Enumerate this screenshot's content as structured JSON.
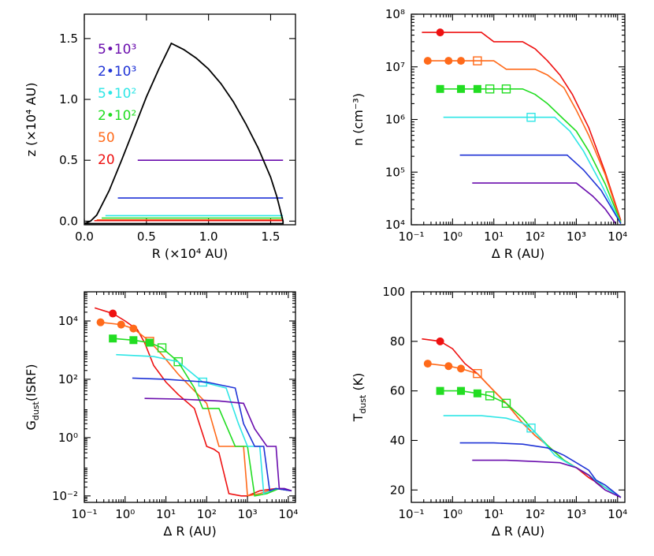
{
  "colors": {
    "5e3": "#6a0dad",
    "2e3": "#1f33d6",
    "5e2": "#2fe6e6",
    "2e2": "#22dd22",
    "50": "#ff6a1a",
    "20": "#ee1111",
    "outline": "#000000"
  },
  "chart_data": [
    {
      "id": "geometry",
      "type": "line",
      "xlabel": "R (×10⁴ AU)",
      "ylabel": "z (×10⁴ AU)",
      "xlim": [
        0,
        1.7
      ],
      "ylim": [
        -0.03,
        1.7
      ],
      "xticks": [
        "0.0",
        "0.5",
        "1.0",
        "1.5"
      ],
      "yticks": [
        "0.0",
        "0.5",
        "1.0",
        "1.5"
      ],
      "legend": [
        "5•10³",
        "2•10³",
        "5•10²",
        "2•10²",
        "50",
        "20"
      ],
      "outline": {
        "x": [
          0,
          0.05,
          0.1,
          0.2,
          0.3,
          0.4,
          0.5,
          0.6,
          0.7,
          0.8,
          0.9,
          1.0,
          1.1,
          1.2,
          1.3,
          1.4,
          1.5,
          1.55,
          1.6,
          1.6,
          0
        ],
        "y": [
          -0.02,
          0.0,
          0.05,
          0.25,
          0.5,
          0.76,
          1.02,
          1.25,
          1.46,
          1.41,
          1.34,
          1.25,
          1.13,
          0.98,
          0.8,
          0.6,
          0.36,
          0.2,
          0.0,
          -0.02,
          -0.02
        ]
      },
      "series": [
        {
          "name": "5•10³",
          "key": "5e3",
          "x": [
            0.43,
            1.6
          ],
          "y": [
            0.5,
            0.5
          ]
        },
        {
          "name": "2•10³",
          "key": "2e3",
          "x": [
            0.27,
            1.6
          ],
          "y": [
            0.19,
            0.19
          ]
        },
        {
          "name": "5•10²",
          "key": "5e2",
          "x": [
            0.17,
            1.6
          ],
          "y": [
            0.045,
            0.045
          ]
        },
        {
          "name": "2•10²",
          "key": "2e2",
          "x": [
            0.14,
            1.6
          ],
          "y": [
            0.025,
            0.025
          ]
        },
        {
          "name": "50",
          "key": "50",
          "x": [
            0.1,
            1.6
          ],
          "y": [
            0.01,
            0.01
          ]
        },
        {
          "name": "20",
          "key": "20",
          "x": [
            0.08,
            1.6
          ],
          "y": [
            0.004,
            0.004
          ]
        }
      ]
    },
    {
      "id": "density",
      "type": "line",
      "xlabel": "Δ R (AU)",
      "ylabel": "n (cm⁻³)",
      "xscale": "log",
      "yscale": "log",
      "xlim": [
        0.1,
        15000
      ],
      "ylim": [
        10000,
        100000000
      ],
      "xticks": [
        0.1,
        1,
        10,
        100,
        1000,
        10000
      ],
      "xticklabels": [
        "10⁻¹",
        "10⁰",
        "10¹",
        "10²",
        "10³",
        "10⁴"
      ],
      "yticks": [
        10000,
        100000,
        1000000,
        10000000,
        100000000
      ],
      "yticklabels": [
        "10⁴",
        "10⁵",
        "10⁶",
        "10⁷",
        "10⁸"
      ],
      "series": [
        {
          "name": "20",
          "key": "20",
          "x": [
            0.18,
            0.5,
            1,
            2,
            5,
            10,
            20,
            50,
            100,
            200,
            400,
            800,
            2000,
            5000,
            12000
          ],
          "y": [
            45000000,
            45000000,
            45000000,
            45000000,
            45000000,
            30000000,
            30000000,
            30000000,
            22000000,
            13000000,
            7000000,
            3000000,
            700000,
            100000,
            12000
          ],
          "markers_filled": [
            [
              0.5,
              45000000
            ]
          ],
          "markers_open": []
        },
        {
          "name": "50",
          "key": "50",
          "x": [
            0.25,
            0.8,
            1.6,
            4,
            10,
            20,
            50,
            100,
            200,
            500,
            1000,
            2000,
            5000,
            12000
          ],
          "y": [
            13000000,
            13000000,
            13000000,
            13000000,
            13000000,
            9000000,
            9000000,
            9000000,
            7000000,
            4000000,
            1500000,
            500000,
            90000,
            11000
          ],
          "markers_filled": [
            [
              0.25,
              13000000
            ],
            [
              0.8,
              13000000
            ],
            [
              1.6,
              13000000
            ]
          ],
          "markers_open": [
            [
              4,
              13000000
            ]
          ]
        },
        {
          "name": "2•10²",
          "key": "2e2",
          "x": [
            0.5,
            1,
            2,
            4,
            8,
            20,
            50,
            100,
            200,
            500,
            1000,
            2000,
            5000,
            12000
          ],
          "y": [
            3800000,
            3800000,
            3800000,
            3800000,
            3800000,
            3800000,
            3800000,
            3000000,
            2000000,
            1000000,
            600000,
            250000,
            60000,
            11000
          ],
          "markers_filled": [
            [
              0.5,
              3800000
            ],
            [
              1.6,
              3800000
            ],
            [
              4,
              3800000
            ]
          ],
          "markers_open": [
            [
              8,
              3800000
            ],
            [
              20,
              3800000
            ]
          ]
        },
        {
          "name": "5•10²",
          "key": "5e2",
          "x": [
            0.6,
            5,
            20,
            80,
            300,
            700,
            1500,
            4000,
            12000
          ],
          "y": [
            1100000,
            1100000,
            1100000,
            1100000,
            1100000,
            600000,
            250000,
            60000,
            10500
          ],
          "markers_filled": [],
          "markers_open": [
            [
              80,
              1100000
            ]
          ]
        },
        {
          "name": "2•10³",
          "key": "2e3",
          "x": [
            1.5,
            10,
            100,
            600,
            1500,
            4000,
            12000
          ],
          "y": [
            210000,
            210000,
            210000,
            210000,
            110000,
            45000,
            10500
          ],
          "markers_filled": [],
          "markers_open": []
        },
        {
          "name": "5•10³",
          "key": "5e3",
          "x": [
            3,
            20,
            200,
            1000,
            2500,
            5000,
            9000
          ],
          "y": [
            62000,
            62000,
            62000,
            62000,
            35000,
            20000,
            10500
          ],
          "markers_filled": [],
          "markers_open": []
        }
      ]
    },
    {
      "id": "gdust",
      "type": "line",
      "xlabel": "Δ R (AU)",
      "ylabel": "G_dust(ISRF)",
      "ylabel_main": "G",
      "ylabel_sub": "dust",
      "ylabel_rest": "(ISRF)",
      "xscale": "log",
      "yscale": "log",
      "xlim": [
        0.1,
        15000
      ],
      "ylim": [
        0.006,
        100000
      ],
      "xticks": [
        0.1,
        1,
        10,
        100,
        1000,
        10000
      ],
      "xticklabels": [
        "10⁻¹",
        "10⁰",
        "10¹",
        "10²",
        "10³",
        "10⁴"
      ],
      "yticks": [
        0.01,
        1,
        100,
        10000
      ],
      "yticklabels": [
        "10⁻²",
        "10⁰",
        "10²",
        "10⁴"
      ],
      "series": [
        {
          "name": "20",
          "key": "20",
          "x": [
            0.18,
            0.5,
            1,
            2,
            3,
            5,
            10,
            20,
            50,
            100,
            150,
            200,
            350,
            700,
            1000,
            2000,
            5000,
            12000
          ],
          "y": [
            28000,
            18000,
            10000,
            5000,
            1800,
            300,
            80,
            30,
            10,
            0.5,
            0.4,
            0.3,
            0.012,
            0.01,
            0.01,
            0.015,
            0.018,
            0.015
          ],
          "markers_filled": [
            [
              0.5,
              18000
            ]
          ],
          "markers_open": []
        },
        {
          "name": "50",
          "key": "50",
          "x": [
            0.25,
            0.8,
            1.6,
            4,
            8,
            20,
            50,
            100,
            200,
            300,
            500,
            800,
            1000,
            2000,
            5000,
            12000
          ],
          "y": [
            9000,
            7500,
            5500,
            2000,
            700,
            150,
            40,
            15,
            0.5,
            0.5,
            0.5,
            0.5,
            0.01,
            0.012,
            0.018,
            0.015
          ],
          "markers_filled": [
            [
              0.25,
              9000
            ],
            [
              0.8,
              7500
            ],
            [
              1.6,
              5500
            ]
          ],
          "markers_open": [
            [
              4,
              2000
            ]
          ]
        },
        {
          "name": "2•10²",
          "key": "2e2",
          "x": [
            0.5,
            1.6,
            4,
            8,
            20,
            50,
            80,
            200,
            500,
            700,
            1000,
            1500,
            3000,
            6000,
            12000
          ],
          "y": [
            2500,
            2200,
            1800,
            1200,
            400,
            50,
            10,
            10,
            0.5,
            0.5,
            0.5,
            0.01,
            0.012,
            0.018,
            0.015
          ],
          "markers_filled": [
            [
              0.5,
              2500
            ],
            [
              1.6,
              2200
            ],
            [
              4,
              1800
            ]
          ],
          "markers_open": [
            [
              8,
              1200
            ],
            [
              20,
              400
            ]
          ]
        },
        {
          "name": "5•10²",
          "key": "5e2",
          "x": [
            0.6,
            5,
            20,
            80,
            300,
            600,
            1000,
            1500,
            2000,
            2500,
            5000,
            12000
          ],
          "y": [
            700,
            600,
            400,
            80,
            50,
            3,
            0.5,
            0.5,
            0.5,
            0.012,
            0.018,
            0.015
          ],
          "markers_filled": [],
          "markers_open": [
            [
              80,
              80
            ]
          ]
        },
        {
          "name": "2•10³",
          "key": "2e3",
          "x": [
            1.5,
            10,
            100,
            500,
            800,
            1500,
            2500,
            3500,
            5000,
            12000
          ],
          "y": [
            110,
            100,
            80,
            50,
            3,
            0.5,
            0.5,
            0.015,
            0.018,
            0.015
          ],
          "markers_filled": [],
          "markers_open": []
        },
        {
          "name": "5•10³",
          "key": "5e3",
          "x": [
            3,
            20,
            200,
            800,
            1500,
            3000,
            5000,
            6000,
            8000,
            12000
          ],
          "y": [
            22,
            21,
            18,
            15,
            2,
            0.5,
            0.5,
            0.018,
            0.018,
            0.015
          ],
          "markers_filled": [],
          "markers_open": []
        }
      ]
    },
    {
      "id": "tdust",
      "type": "line",
      "xlabel": "Δ R (AU)",
      "ylabel": "T_dust (K)",
      "ylabel_main": "T",
      "ylabel_sub": "dust",
      "ylabel_rest": " (K)",
      "xscale": "log",
      "yscale": "linear",
      "xlim": [
        0.1,
        15000
      ],
      "ylim": [
        15,
        100
      ],
      "xticks": [
        0.1,
        1,
        10,
        100,
        1000,
        10000
      ],
      "xticklabels": [
        "10⁻¹",
        "10⁰",
        "10¹",
        "10²",
        "10³",
        "10⁴"
      ],
      "yticks": [
        20,
        40,
        60,
        80,
        100
      ],
      "yticklabels": [
        "20",
        "40",
        "60",
        "80",
        "100"
      ],
      "series": [
        {
          "name": "20",
          "key": "20",
          "x": [
            0.18,
            0.5,
            1,
            2,
            4,
            10,
            20,
            50,
            100,
            200,
            500,
            1000,
            2000,
            5000,
            12000
          ],
          "y": [
            81,
            80,
            77,
            71,
            67,
            60,
            55,
            47,
            42,
            38,
            32,
            29,
            25,
            21,
            17
          ],
          "markers_filled": [
            [
              0.5,
              80
            ]
          ],
          "markers_open": []
        },
        {
          "name": "50",
          "key": "50",
          "x": [
            0.25,
            0.8,
            1.6,
            4,
            10,
            20,
            50,
            100,
            200,
            500,
            1000,
            2000,
            5000,
            12000
          ],
          "y": [
            71,
            70,
            69,
            67,
            60,
            55,
            47,
            42,
            38,
            32,
            29,
            26,
            21,
            17
          ],
          "markers_filled": [
            [
              0.25,
              71
            ],
            [
              0.8,
              70
            ],
            [
              1.6,
              69
            ]
          ],
          "markers_open": [
            [
              4,
              67
            ]
          ]
        },
        {
          "name": "2•10²",
          "key": "2e2",
          "x": [
            0.5,
            1.6,
            4,
            8,
            20,
            50,
            80,
            200,
            500,
            1000,
            2000,
            5000,
            12000
          ],
          "y": [
            60,
            60,
            59,
            58,
            55,
            49,
            45,
            38,
            32,
            29,
            26,
            21,
            17
          ],
          "markers_filled": [
            [
              0.5,
              60
            ],
            [
              1.6,
              60
            ],
            [
              4,
              59
            ]
          ],
          "markers_open": [
            [
              8,
              58
            ],
            [
              20,
              55
            ]
          ]
        },
        {
          "name": "5•10²",
          "key": "5e2",
          "x": [
            0.6,
            5,
            20,
            50,
            80,
            150,
            300,
            600,
            1000,
            2000,
            5000,
            12000
          ],
          "y": [
            50,
            50,
            49,
            47,
            45,
            40,
            34,
            31,
            29,
            26,
            21,
            17
          ],
          "markers_filled": [],
          "markers_open": [
            [
              80,
              45
            ]
          ]
        },
        {
          "name": "2•10³",
          "key": "2e3",
          "x": [
            1.5,
            10,
            50,
            200,
            500,
            1000,
            2000,
            3000,
            5000,
            12000
          ],
          "y": [
            39,
            39,
            38.5,
            37,
            34,
            31,
            28,
            24,
            22,
            17
          ],
          "markers_filled": [],
          "markers_open": []
        },
        {
          "name": "5•10³",
          "key": "5e3",
          "x": [
            3,
            20,
            100,
            400,
            1000,
            2000,
            3000,
            5000,
            12000
          ],
          "y": [
            32,
            32,
            31.5,
            31,
            29,
            26,
            23,
            20,
            17
          ],
          "markers_filled": [],
          "markers_open": []
        }
      ]
    }
  ]
}
